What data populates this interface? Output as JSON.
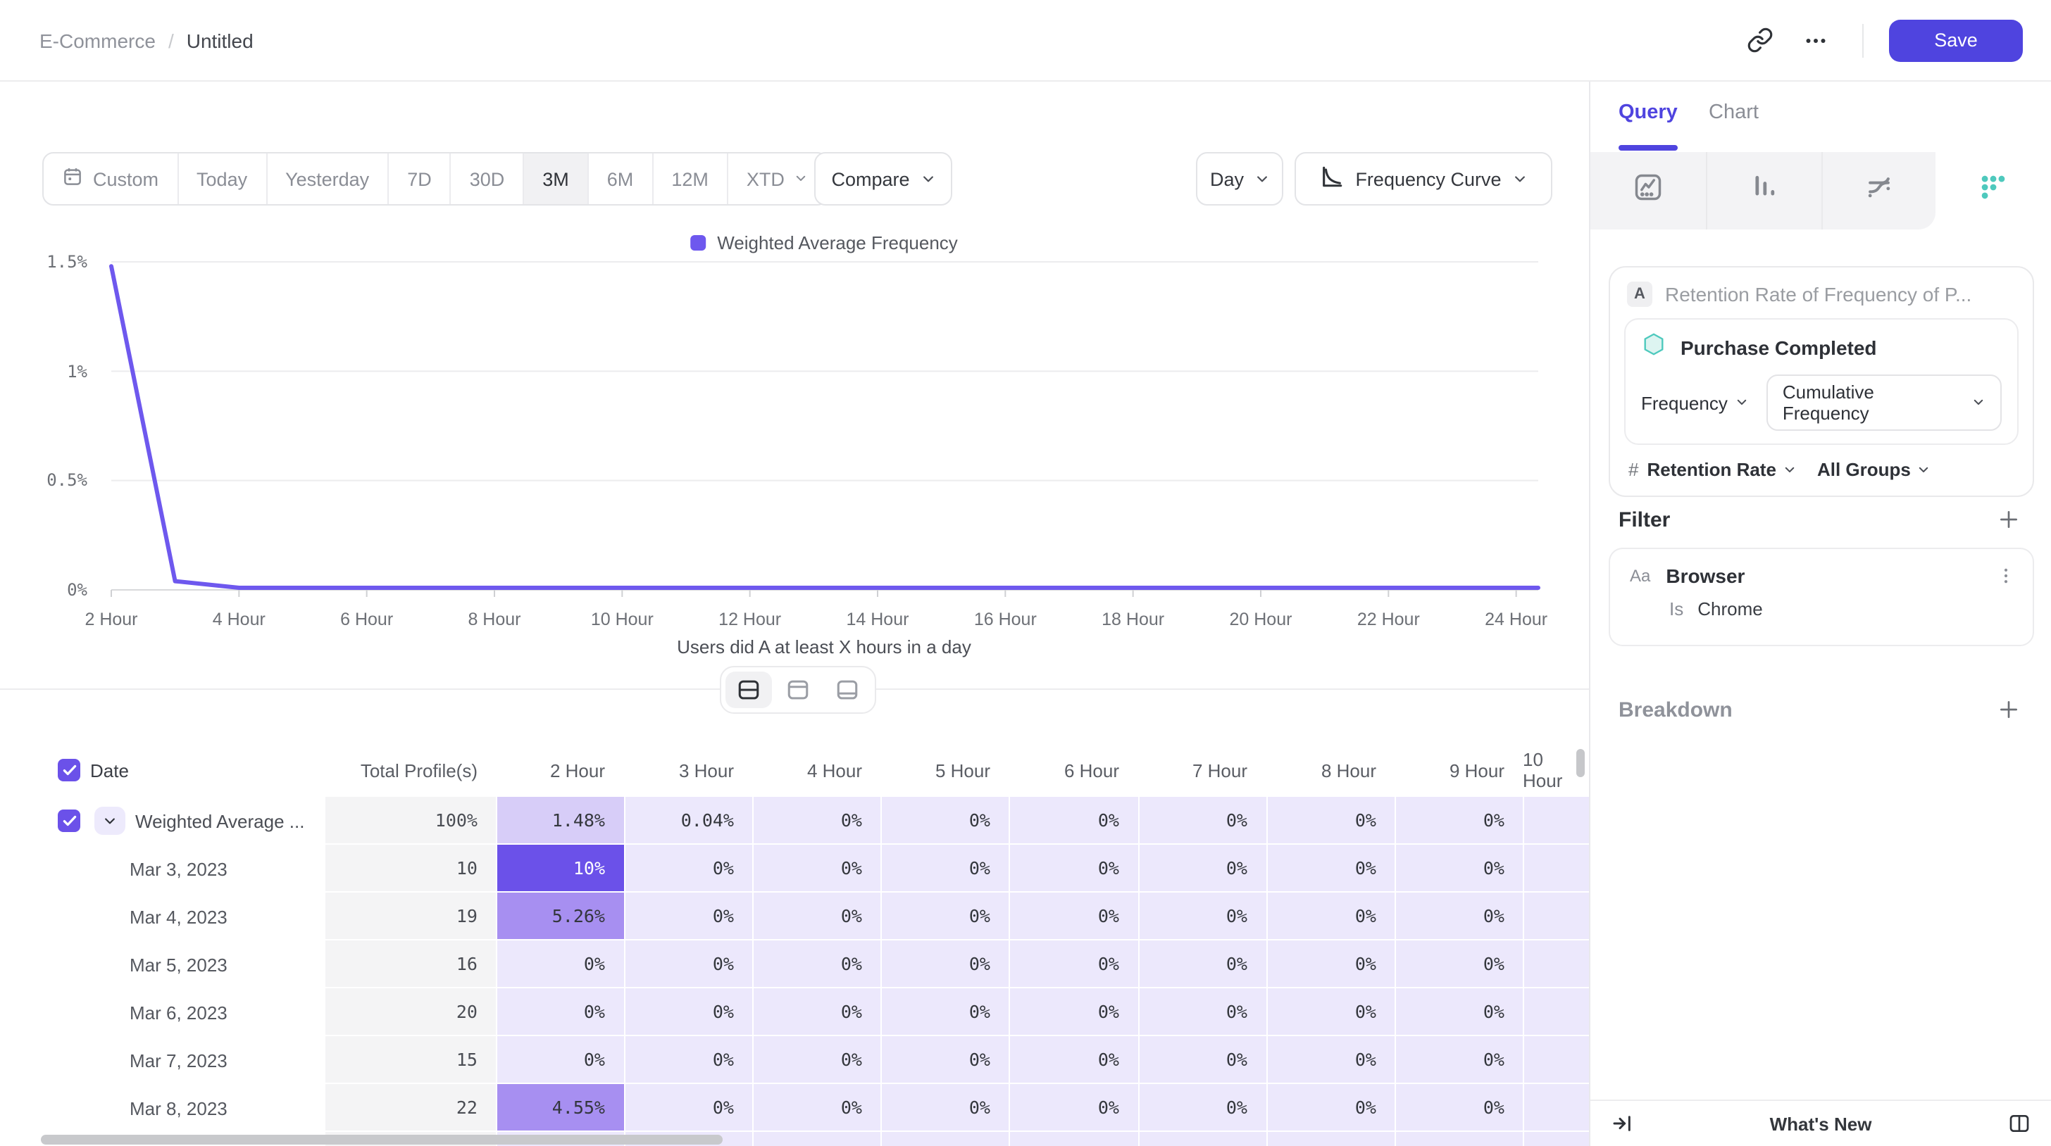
{
  "topbar": {
    "breadcrumb": {
      "parent": "E-Commerce",
      "separator": "/",
      "current": "Untitled"
    },
    "save_label": "Save"
  },
  "controls": {
    "date_ranges": [
      "Custom",
      "Today",
      "Yesterday",
      "7D",
      "30D",
      "3M",
      "6M",
      "12M",
      "XTD"
    ],
    "active_range": "3M",
    "compare_label": "Compare",
    "granularity_label": "Day",
    "view_label": "Frequency Curve"
  },
  "chart_data": {
    "type": "line",
    "legend": [
      "Weighted Average Frequency"
    ],
    "series": [
      {
        "name": "Weighted Average Frequency",
        "color": "#6e58ee",
        "x_hours": [
          2,
          3,
          4,
          5,
          6,
          7,
          8,
          9,
          10,
          11,
          12,
          13,
          14,
          15,
          16,
          17,
          18,
          19,
          20,
          21,
          22,
          23,
          24
        ],
        "y_percent": [
          1.48,
          0.04,
          0,
          0,
          0,
          0,
          0,
          0,
          0,
          0,
          0,
          0,
          0,
          0,
          0,
          0,
          0,
          0,
          0,
          0,
          0,
          0,
          0
        ]
      }
    ],
    "x_tick_labels": [
      "2 Hour",
      "4 Hour",
      "6 Hour",
      "8 Hour",
      "10 Hour",
      "12 Hour",
      "14 Hour",
      "16 Hour",
      "18 Hour",
      "20 Hour",
      "22 Hour",
      "24 Hour"
    ],
    "y_tick_labels": [
      "0%",
      "0.5%",
      "1%",
      "1.5%"
    ],
    "ylim": [
      0,
      1.5
    ],
    "xlabel": "Users did A at least X hours in a day",
    "grid": "horizontal"
  },
  "table": {
    "select_all_checked": true,
    "columns": {
      "date": "Date",
      "total": "Total Profile(s)",
      "hours": [
        "2 Hour",
        "3 Hour",
        "4 Hour",
        "5 Hour",
        "6 Hour",
        "7 Hour",
        "8 Hour",
        "9 Hour",
        "10 Hour"
      ]
    },
    "rows": [
      {
        "label": "Weighted Average ...",
        "summary": true,
        "checked": true,
        "total": "100%",
        "cells": [
          "1.48%",
          "0.04%",
          "0%",
          "0%",
          "0%",
          "0%",
          "0%",
          "0%",
          ""
        ]
      },
      {
        "label": "Mar 3, 2023",
        "total": "10",
        "cells": [
          "10%",
          "0%",
          "0%",
          "0%",
          "0%",
          "0%",
          "0%",
          "0%",
          ""
        ]
      },
      {
        "label": "Mar 4, 2023",
        "total": "19",
        "cells": [
          "5.26%",
          "0%",
          "0%",
          "0%",
          "0%",
          "0%",
          "0%",
          "0%",
          ""
        ]
      },
      {
        "label": "Mar 5, 2023",
        "total": "16",
        "cells": [
          "0%",
          "0%",
          "0%",
          "0%",
          "0%",
          "0%",
          "0%",
          "0%",
          ""
        ]
      },
      {
        "label": "Mar 6, 2023",
        "total": "20",
        "cells": [
          "0%",
          "0%",
          "0%",
          "0%",
          "0%",
          "0%",
          "0%",
          "0%",
          ""
        ]
      },
      {
        "label": "Mar 7, 2023",
        "total": "15",
        "cells": [
          "0%",
          "0%",
          "0%",
          "0%",
          "0%",
          "0%",
          "0%",
          "0%",
          ""
        ]
      },
      {
        "label": "Mar 8, 2023",
        "total": "22",
        "cells": [
          "4.55%",
          "0%",
          "0%",
          "0%",
          "0%",
          "0%",
          "0%",
          "0%",
          ""
        ]
      },
      {
        "label": "",
        "partial": true,
        "total": "",
        "cells": [
          "",
          "",
          "",
          "",
          "",
          "",
          "",
          "",
          ""
        ]
      }
    ]
  },
  "panel": {
    "tabs": [
      {
        "label": "Query",
        "active": true
      },
      {
        "label": "Chart",
        "active": false
      }
    ],
    "chart_type_icons": [
      "line-chart",
      "bar-chart",
      "flow-chart",
      "frequency-grid"
    ],
    "active_chart_type": "frequency-grid",
    "query": {
      "series_label": "A",
      "title": "Retention Rate of Frequency of P...",
      "event_name": "Purchase Completed",
      "measure": "Frequency",
      "measure_mode": "Cumulative Frequency",
      "metric_symbol": "#",
      "metric": "Retention Rate",
      "group_scope": "All Groups"
    },
    "filter": {
      "section_label": "Filter",
      "property_type": "Aa",
      "property": "Browser",
      "operator": "Is",
      "value": "Chrome"
    },
    "breakdown": {
      "section_label": "Breakdown"
    },
    "whats_new_label": "What's New"
  },
  "colors": {
    "accent": "#4f44df",
    "chart_line": "#6e58ee",
    "teal": "#4ec9bd",
    "heat_hot": "#6b51e9",
    "heat_warm": "#a78ff1",
    "heat_mid": "#d7cdf8",
    "heat_light": "#ece8fc",
    "total_col_bg": "#f4f4f5"
  }
}
